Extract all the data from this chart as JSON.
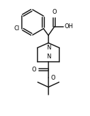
{
  "bg_color": "#ffffff",
  "line_color": "#1a1a1a",
  "text_color": "#000000",
  "lw": 1.1,
  "figsize": [
    1.32,
    1.69
  ],
  "dpi": 100,
  "xlim": [
    0,
    10
  ],
  "ylim": [
    0,
    13
  ]
}
